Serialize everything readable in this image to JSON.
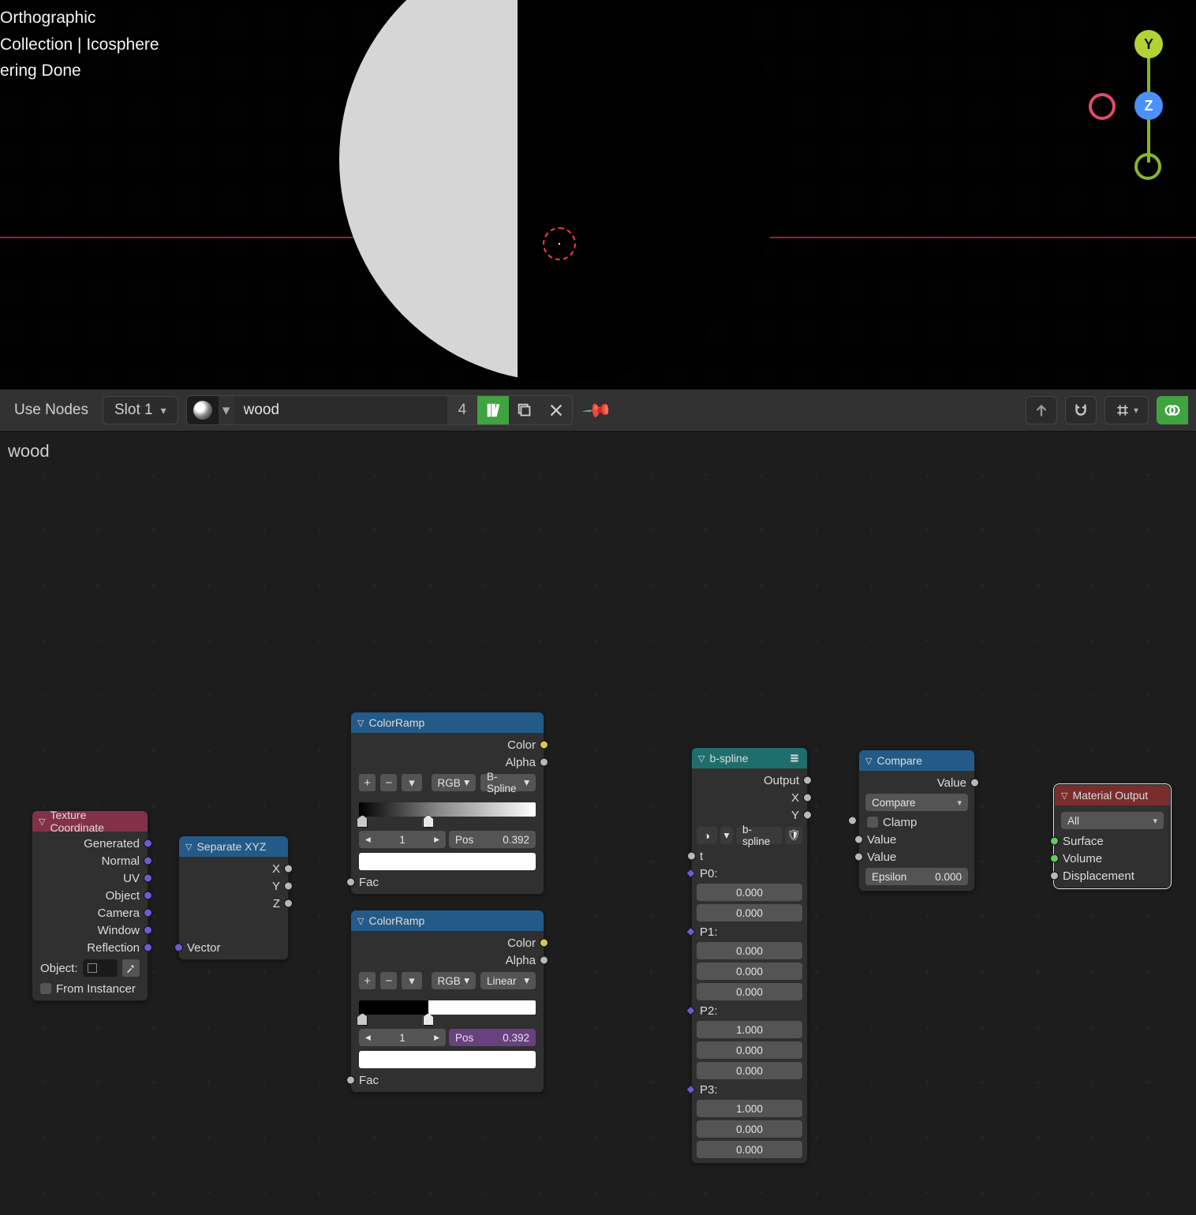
{
  "viewport": {
    "hud_lines": [
      "Orthographic",
      "Collection | Icosphere",
      "ering Done"
    ],
    "sphere": {
      "light_pct": 40,
      "light_color": "#d6d6d6",
      "dark_color": "#000000"
    },
    "horizon_color": "#e35070",
    "cursor_color": "#ff3b3b",
    "gizmo": {
      "y": {
        "label": "Y",
        "color": "#b3d335"
      },
      "z": {
        "label": "Z",
        "color": "#4a90ff"
      },
      "x": {
        "label": "",
        "color": "#e24b6b"
      }
    }
  },
  "toolbar": {
    "use_nodes_label": "Use Nodes",
    "slot_label": "Slot 1",
    "material_name": "wood",
    "users": "4",
    "pin_glyph": "📌"
  },
  "editor": {
    "title": "wood",
    "link_colors": {
      "vector": "#6b5bd6",
      "value": "#9a9a9a",
      "color": "#c6c84b",
      "shader": "#63c763"
    }
  },
  "nodes": {
    "tex": {
      "title": "Texture Coordinate",
      "outputs": [
        "Generated",
        "Normal",
        "UV",
        "Object",
        "Camera",
        "Window",
        "Reflection"
      ],
      "object_label": "Object:",
      "from_instancer": "From Instancer"
    },
    "sep": {
      "title": "Separate XYZ",
      "outputs": [
        "X",
        "Y",
        "Z"
      ],
      "input": "Vector"
    },
    "cr1": {
      "title": "ColorRamp",
      "outputs": [
        "Color",
        "Alpha"
      ],
      "mode": "RGB",
      "interp": "B-Spline",
      "stop_index": "1",
      "pos_label": "Pos",
      "pos_value": "0.392",
      "swatch": "#ffffff",
      "fac": "Fac",
      "gradient": "linear-gradient(90deg,#000 0%, #888 45%, #fff 100%)",
      "stops": [
        2,
        39.2
      ]
    },
    "cr2": {
      "title": "ColorRamp",
      "outputs": [
        "Color",
        "Alpha"
      ],
      "mode": "RGB",
      "interp": "Linear",
      "stop_index": "1",
      "pos_label": "Pos",
      "pos_value": "0.392",
      "swatch": "#ffffff",
      "fac": "Fac",
      "gradient": "linear-gradient(90deg,#000 0%, #000 39%, #fff 39.5%, #fff 100%)",
      "stops": [
        2,
        39.2
      ]
    },
    "grp": {
      "title": "b-spline",
      "picker": "b-spline",
      "outputs": [
        "Output",
        "X",
        "Y"
      ],
      "t_label": "t",
      "ctrl": [
        {
          "label": "P0:",
          "v": [
            "0.000",
            "0.000"
          ]
        },
        {
          "label": "P1:",
          "v": [
            "0.000",
            "0.000",
            "0.000"
          ]
        },
        {
          "label": "P2:",
          "v": [
            "1.000",
            "0.000",
            "0.000"
          ]
        },
        {
          "label": "P3:",
          "v": [
            "1.000",
            "0.000",
            "0.000"
          ]
        }
      ]
    },
    "cmp": {
      "title": "Compare",
      "output": "Value",
      "op_label": "Compare",
      "clamp": "Clamp",
      "inputs": [
        "Value",
        "Value"
      ],
      "eps_label": "Epsilon",
      "eps_value": "0.000"
    },
    "out": {
      "title": "Material Output",
      "target": "All",
      "inputs": [
        "Surface",
        "Volume",
        "Displacement"
      ]
    }
  }
}
